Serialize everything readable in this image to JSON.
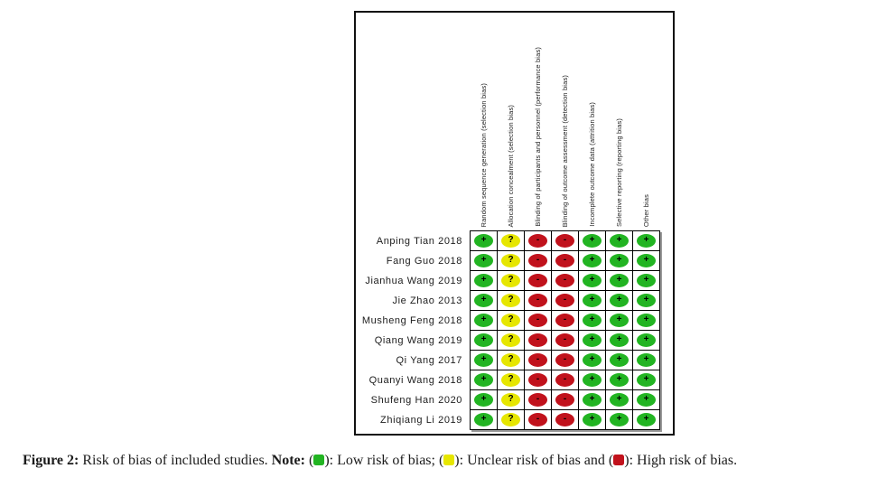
{
  "figure": {
    "columns": [
      "Random sequence generation (selection bias)",
      "Allocation concealment (selection bias)",
      "Blinding of participants and personnel (performance bias)",
      "Blinding of outcome assessment (detection bias)",
      "Incomplete outcome data (attrition bias)",
      "Selective reporting (reporting bias)",
      "Other bias"
    ],
    "rows": [
      {
        "study": "Anping Tian 2018",
        "judgments": [
          "low",
          "unclear",
          "high",
          "high",
          "low",
          "low",
          "low"
        ]
      },
      {
        "study": "Fang Guo 2018",
        "judgments": [
          "low",
          "unclear",
          "high",
          "high",
          "low",
          "low",
          "low"
        ]
      },
      {
        "study": "Jianhua Wang 2019",
        "judgments": [
          "low",
          "unclear",
          "high",
          "high",
          "low",
          "low",
          "low"
        ]
      },
      {
        "study": "Jie Zhao 2013",
        "judgments": [
          "low",
          "unclear",
          "high",
          "high",
          "low",
          "low",
          "low"
        ]
      },
      {
        "study": "Musheng Feng 2018",
        "judgments": [
          "low",
          "unclear",
          "high",
          "high",
          "low",
          "low",
          "low"
        ]
      },
      {
        "study": "Qiang Wang 2019",
        "judgments": [
          "low",
          "unclear",
          "high",
          "high",
          "low",
          "low",
          "low"
        ]
      },
      {
        "study": "Qi Yang 2017",
        "judgments": [
          "low",
          "unclear",
          "high",
          "high",
          "low",
          "low",
          "low"
        ]
      },
      {
        "study": "Quanyi Wang 2018",
        "judgments": [
          "low",
          "unclear",
          "high",
          "high",
          "low",
          "low",
          "low"
        ]
      },
      {
        "study": "Shufeng Han 2020",
        "judgments": [
          "low",
          "unclear",
          "high",
          "high",
          "low",
          "low",
          "low"
        ]
      },
      {
        "study": "Zhiqiang Li 2019",
        "judgments": [
          "low",
          "unclear",
          "high",
          "high",
          "low",
          "low",
          "low"
        ]
      }
    ],
    "symbols": {
      "low": "+",
      "unclear": "?",
      "high": "-"
    },
    "colors": {
      "low": "#22b422",
      "unclear": "#e6e600",
      "high": "#c1121c"
    }
  },
  "chart_data": {
    "type": "heatmap",
    "title": "Risk of bias of included studies",
    "x_categories": [
      "Random sequence generation (selection bias)",
      "Allocation concealment (selection bias)",
      "Blinding of participants and personnel (performance bias)",
      "Blinding of outcome assessment (detection bias)",
      "Incomplete outcome data (attrition bias)",
      "Selective reporting (reporting bias)",
      "Other bias"
    ],
    "y_categories": [
      "Anping Tian 2018",
      "Fang Guo 2018",
      "Jianhua Wang 2019",
      "Jie Zhao 2013",
      "Musheng Feng 2018",
      "Qiang Wang 2019",
      "Qi Yang 2017",
      "Quanyi Wang 2018",
      "Shufeng Han 2020",
      "Zhiqiang Li 2019"
    ],
    "values_legend": {
      "low": "Low risk of bias",
      "unclear": "Unclear risk of bias",
      "high": "High risk of bias"
    },
    "values": [
      [
        "low",
        "unclear",
        "high",
        "high",
        "low",
        "low",
        "low"
      ],
      [
        "low",
        "unclear",
        "high",
        "high",
        "low",
        "low",
        "low"
      ],
      [
        "low",
        "unclear",
        "high",
        "high",
        "low",
        "low",
        "low"
      ],
      [
        "low",
        "unclear",
        "high",
        "high",
        "low",
        "low",
        "low"
      ],
      [
        "low",
        "unclear",
        "high",
        "high",
        "low",
        "low",
        "low"
      ],
      [
        "low",
        "unclear",
        "high",
        "high",
        "low",
        "low",
        "low"
      ],
      [
        "low",
        "unclear",
        "high",
        "high",
        "low",
        "low",
        "low"
      ],
      [
        "low",
        "unclear",
        "high",
        "high",
        "low",
        "low",
        "low"
      ],
      [
        "low",
        "unclear",
        "high",
        "high",
        "low",
        "low",
        "low"
      ],
      [
        "low",
        "unclear",
        "high",
        "high",
        "low",
        "low",
        "low"
      ]
    ]
  },
  "caption": {
    "figure_label": "Figure 2:",
    "description": "Risk of bias of included studies.",
    "note_label": "Note:",
    "legend": [
      {
        "level": "low",
        "label": "Low risk of bias",
        "suffix": "; "
      },
      {
        "level": "unclear",
        "label": "Unclear risk of bias",
        "suffix": " and "
      },
      {
        "level": "high",
        "label": "High risk of bias",
        "suffix": "."
      }
    ]
  }
}
